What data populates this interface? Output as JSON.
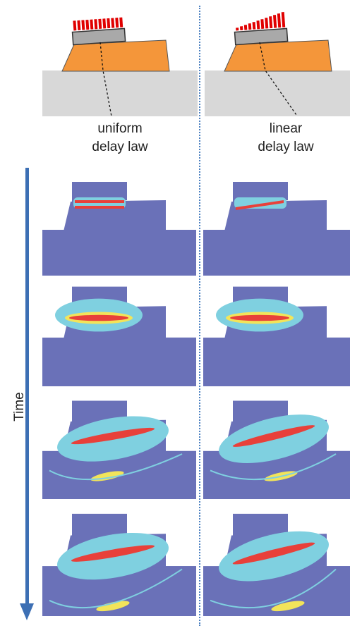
{
  "columns": [
    {
      "label_line1": "uniform",
      "label_line2": "delay law",
      "delay": "uniform"
    },
    {
      "label_line1": "linear",
      "label_line2": "delay law",
      "delay": "linear"
    }
  ],
  "time_axis_label": "Time",
  "snapshot_count": 4,
  "colors": {
    "block": "#f4963a",
    "ground": "#d8d8d8",
    "probe": "#a9a9a9",
    "elements": "#e00000",
    "field_bg": "#6a71b8",
    "field_mid": "#7fd0e0",
    "field_high": "#f2e45a",
    "field_peak": "#e8403a",
    "axis": "#3c6fb4"
  }
}
